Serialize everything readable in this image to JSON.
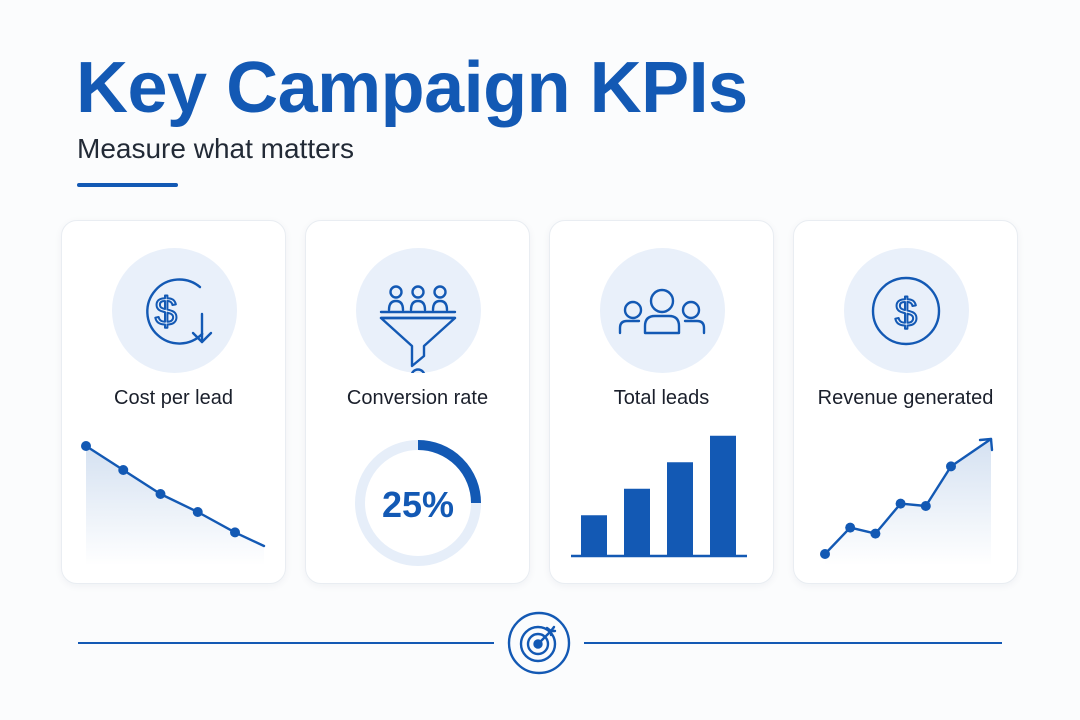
{
  "header": {
    "title": "Key Campaign KPIs",
    "subtitle": "Measure what matters"
  },
  "cards": [
    {
      "label": "Cost per lead",
      "icon": "dollar-down-icon",
      "trend": "decreasing",
      "points": [
        10,
        8,
        6,
        4.5,
        2.8
      ]
    },
    {
      "label": "Conversion rate",
      "icon": "funnel-icon",
      "gauge_value": "25%",
      "gauge_fraction": 0.25
    },
    {
      "label": "Total leads",
      "icon": "people-icon",
      "bars": [
        1.5,
        2.5,
        3.5,
        4.5
      ]
    },
    {
      "label": "Revenue generated",
      "icon": "dollar-icon",
      "trend": "increasing",
      "points": [
        1,
        3.2,
        2.7,
        5.2,
        5,
        8.3
      ]
    }
  ],
  "footer": {
    "icon": "target-icon"
  },
  "colors": {
    "accent": "#1359b4",
    "icon_bg": "#e9f0fa",
    "track": "#e6eef9"
  }
}
